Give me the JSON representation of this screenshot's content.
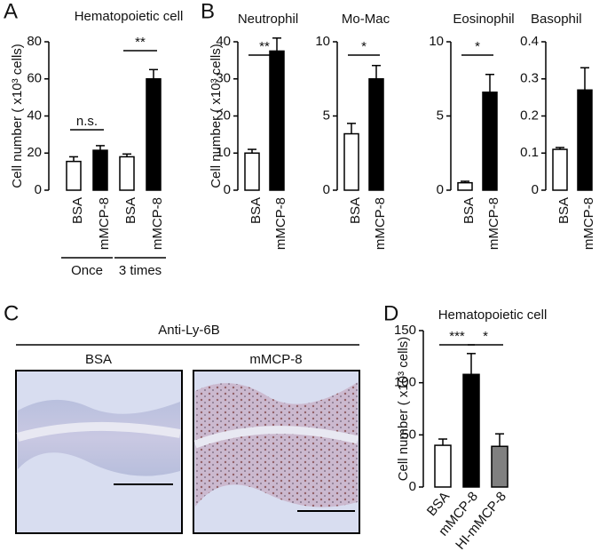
{
  "panel_labels": [
    "A",
    "B",
    "C",
    "D"
  ],
  "histology": {
    "title": "Anti-Ly-6B",
    "images": [
      "BSA",
      "mMCP-8"
    ]
  },
  "chart_data": [
    {
      "type": "bar",
      "title": "Hematopoietic cell",
      "y_label": "Cell number ( x10³ cells)",
      "categories": [
        "BSA",
        "mMCP-8",
        "BSA",
        "mMCP-8"
      ],
      "values": [
        15.5,
        21.5,
        18,
        60
      ],
      "errors": [
        2.5,
        2.5,
        1.5,
        5
      ],
      "colors": [
        "#ffffff",
        "#000000",
        "#ffffff",
        "#000000"
      ],
      "ylim": [
        0,
        80
      ],
      "yticks": [
        0,
        20,
        40,
        60,
        80
      ],
      "annotations": [
        "n.s.",
        "**"
      ],
      "group_labels": [
        "Once",
        "3 times"
      ]
    },
    {
      "type": "bar",
      "title": "Neutrophil",
      "y_label": "Cell number ( x10³ cells)",
      "categories": [
        "BSA",
        "mMCP-8"
      ],
      "values": [
        10,
        37.5
      ],
      "errors": [
        1,
        3.5
      ],
      "colors": [
        "#ffffff",
        "#000000"
      ],
      "ylim": [
        0,
        40
      ],
      "yticks": [
        0,
        10,
        20,
        30,
        40
      ],
      "annotations": [
        "**"
      ]
    },
    {
      "type": "bar",
      "title": "Mo-Mac",
      "categories": [
        "BSA",
        "mMCP-8"
      ],
      "values": [
        3.8,
        7.5
      ],
      "errors": [
        0.7,
        0.9
      ],
      "colors": [
        "#ffffff",
        "#000000"
      ],
      "ylim": [
        0,
        10
      ],
      "yticks": [
        0,
        5,
        10
      ],
      "annotations": [
        "*"
      ]
    },
    {
      "type": "bar",
      "title": "Eosinophil",
      "categories": [
        "BSA",
        "mMCP-8"
      ],
      "values": [
        0.5,
        6.6
      ],
      "errors": [
        0.1,
        1.2
      ],
      "colors": [
        "#ffffff",
        "#000000"
      ],
      "ylim": [
        0,
        10
      ],
      "yticks": [
        0,
        5,
        10
      ],
      "annotations": [
        "*"
      ]
    },
    {
      "type": "bar",
      "title": "Basophil",
      "categories": [
        "BSA",
        "mMCP-8"
      ],
      "values": [
        0.11,
        0.27
      ],
      "errors": [
        0.005,
        0.06
      ],
      "colors": [
        "#ffffff",
        "#000000"
      ],
      "ylim": [
        0,
        0.4
      ],
      "yticks": [
        0,
        0.1,
        0.2,
        0.3,
        0.4
      ]
    },
    {
      "type": "bar",
      "title": "Hematopoietic cell",
      "y_label": "Cell number ( x10³ cells)",
      "categories": [
        "BSA",
        "mMCP-8",
        "HI-mMCP-8"
      ],
      "values": [
        40,
        108,
        39
      ],
      "errors": [
        6,
        20,
        12
      ],
      "colors": [
        "#ffffff",
        "#000000",
        "#808080"
      ],
      "ylim": [
        0,
        150
      ],
      "yticks": [
        0,
        50,
        100,
        150
      ],
      "annotations": [
        "***",
        "*"
      ]
    }
  ]
}
